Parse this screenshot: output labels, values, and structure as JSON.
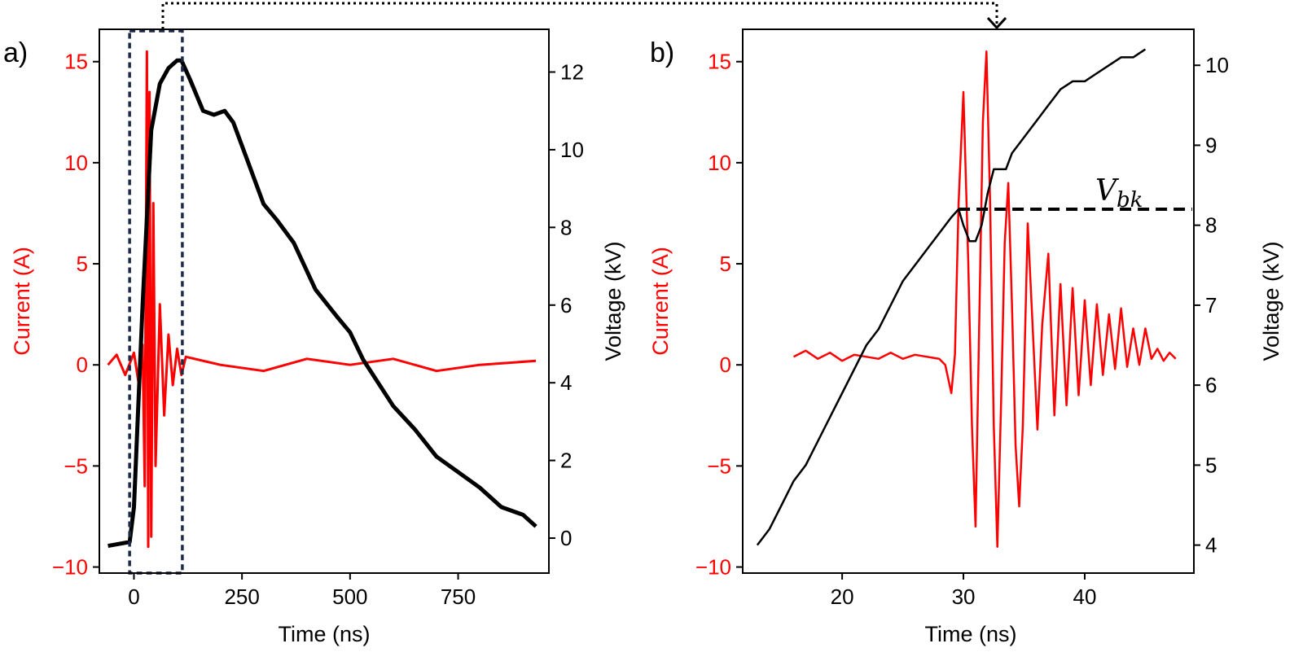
{
  "colors": {
    "current": "#ff0000",
    "voltage": "#000000",
    "highlight_box": "#1c2a4a"
  },
  "chart_data": [
    {
      "panel_label": "a)",
      "type": "line",
      "xlabel": "Time (ns)",
      "ylabel_left": "Current (A)",
      "ylabel_right": "Voltage (kV)",
      "xlim": [
        -80,
        960
      ],
      "ylim_left": [
        -10.3,
        16.6
      ],
      "ylim_right": [
        -0.9,
        13.1
      ],
      "xticks": [
        0,
        250,
        500,
        750
      ],
      "yticks_left": [
        -10,
        -5,
        0,
        5,
        10,
        15
      ],
      "yticks_right": [
        0,
        2,
        4,
        6,
        8,
        10,
        12
      ],
      "highlight_box_x": [
        -10,
        112
      ],
      "series": [
        {
          "name": "Current (A)",
          "axis": "left",
          "x": [
            -60,
            -40,
            -20,
            0,
            10,
            20,
            25,
            30,
            33,
            36,
            40,
            45,
            50,
            60,
            70,
            80,
            90,
            100,
            110,
            120,
            200,
            300,
            400,
            500,
            600,
            700,
            800,
            930
          ],
          "y": [
            0,
            0.5,
            -0.5,
            0.6,
            -0.8,
            1.0,
            -6.0,
            15.5,
            -9.0,
            13.5,
            -8.5,
            8.0,
            -5.0,
            3.0,
            -2.5,
            1.5,
            -1.0,
            0.8,
            -0.5,
            0.4,
            0.0,
            -0.3,
            0.3,
            0.0,
            0.3,
            -0.3,
            0.0,
            0.2
          ]
        },
        {
          "name": "Voltage (kV)",
          "axis": "right",
          "x": [
            -60,
            -10,
            0,
            20,
            40,
            60,
            80,
            100,
            110,
            130,
            160,
            185,
            210,
            230,
            260,
            300,
            330,
            370,
            420,
            470,
            500,
            530,
            600,
            650,
            700,
            750,
            800,
            850,
            900,
            930
          ],
          "y": [
            -0.2,
            -0.1,
            0.8,
            6.0,
            10.5,
            11.7,
            12.1,
            12.3,
            12.3,
            11.8,
            11.0,
            10.9,
            11.0,
            10.7,
            9.8,
            8.6,
            8.2,
            7.6,
            6.4,
            5.7,
            5.3,
            4.6,
            3.4,
            2.8,
            2.1,
            1.7,
            1.3,
            0.8,
            0.6,
            0.3
          ]
        }
      ]
    },
    {
      "panel_label": "b)",
      "type": "line",
      "xlabel": "Time (ns)",
      "ylabel_left": "Current (A)",
      "ylabel_right": "Voltage (kV)",
      "xlim": [
        11.8,
        49
      ],
      "ylim_left": [
        -10.3,
        16.6
      ],
      "ylim_right": [
        3.65,
        10.45
      ],
      "xticks": [
        20,
        30,
        40
      ],
      "yticks_left": [
        -10,
        -5,
        0,
        5,
        10,
        15
      ],
      "yticks_right": [
        4,
        5,
        6,
        7,
        8,
        9,
        10
      ],
      "annotation": "V_bk",
      "annotation_level_kv": 8.2,
      "annotation_x_range": [
        29.6,
        49
      ],
      "series": [
        {
          "name": "Current (A)",
          "axis": "left",
          "x": [
            16,
            17,
            18,
            19,
            20,
            21,
            22,
            23,
            24,
            25,
            26,
            27,
            28,
            28.5,
            29,
            29.3,
            29.6,
            30.0,
            30.4,
            30.7,
            31.0,
            31.3,
            31.6,
            31.9,
            32.2,
            32.5,
            32.8,
            33.1,
            33.4,
            33.7,
            34.0,
            34.3,
            34.6,
            34.9,
            35.3,
            35.7,
            36.1,
            36.5,
            37.0,
            37.5,
            38.0,
            38.5,
            39.0,
            39.5,
            40.0,
            40.5,
            41.0,
            41.5,
            42.0,
            42.5,
            43.0,
            43.5,
            44.0,
            44.5,
            45.0,
            45.5,
            46.0,
            46.5,
            47.0,
            47.5
          ],
          "y": [
            0.4,
            0.7,
            0.3,
            0.6,
            0.2,
            0.5,
            0.4,
            0.3,
            0.6,
            0.3,
            0.5,
            0.4,
            0.3,
            0.0,
            -1.4,
            0.5,
            8.0,
            13.5,
            5.0,
            -3.0,
            -8.0,
            2.0,
            12.0,
            15.5,
            8.0,
            -3.0,
            -9.0,
            -2.0,
            6.0,
            9.0,
            3.0,
            -4.0,
            -7.0,
            -3.0,
            7.0,
            2.0,
            -3.2,
            2.0,
            5.5,
            -2.5,
            4.0,
            -2.0,
            3.8,
            -1.5,
            3.2,
            -1.0,
            3.0,
            -0.5,
            2.5,
            -0.2,
            2.8,
            -0.1,
            1.8,
            0.0,
            1.8,
            0.3,
            0.8,
            0.2,
            0.6,
            0.3
          ]
        },
        {
          "name": "Voltage (kV)",
          "axis": "right",
          "x": [
            13,
            14,
            15,
            16,
            17,
            18,
            19,
            20,
            21,
            22,
            23,
            24,
            25,
            26,
            27,
            28,
            29,
            29.6,
            30.0,
            30.5,
            31.0,
            31.5,
            32.0,
            32.5,
            33.0,
            33.5,
            34.0,
            35.0,
            36.0,
            37.0,
            38.0,
            39.0,
            40.0,
            41.0,
            42.0,
            43.0,
            44.0,
            45.0
          ],
          "y": [
            4.0,
            4.2,
            4.5,
            4.8,
            5.0,
            5.3,
            5.6,
            5.9,
            6.2,
            6.5,
            6.7,
            7.0,
            7.3,
            7.5,
            7.7,
            7.9,
            8.1,
            8.2,
            8.0,
            7.8,
            7.8,
            8.0,
            8.4,
            8.7,
            8.7,
            8.7,
            8.9,
            9.1,
            9.3,
            9.5,
            9.7,
            9.8,
            9.8,
            9.9,
            10.0,
            10.1,
            10.1,
            10.2
          ]
        }
      ]
    }
  ]
}
